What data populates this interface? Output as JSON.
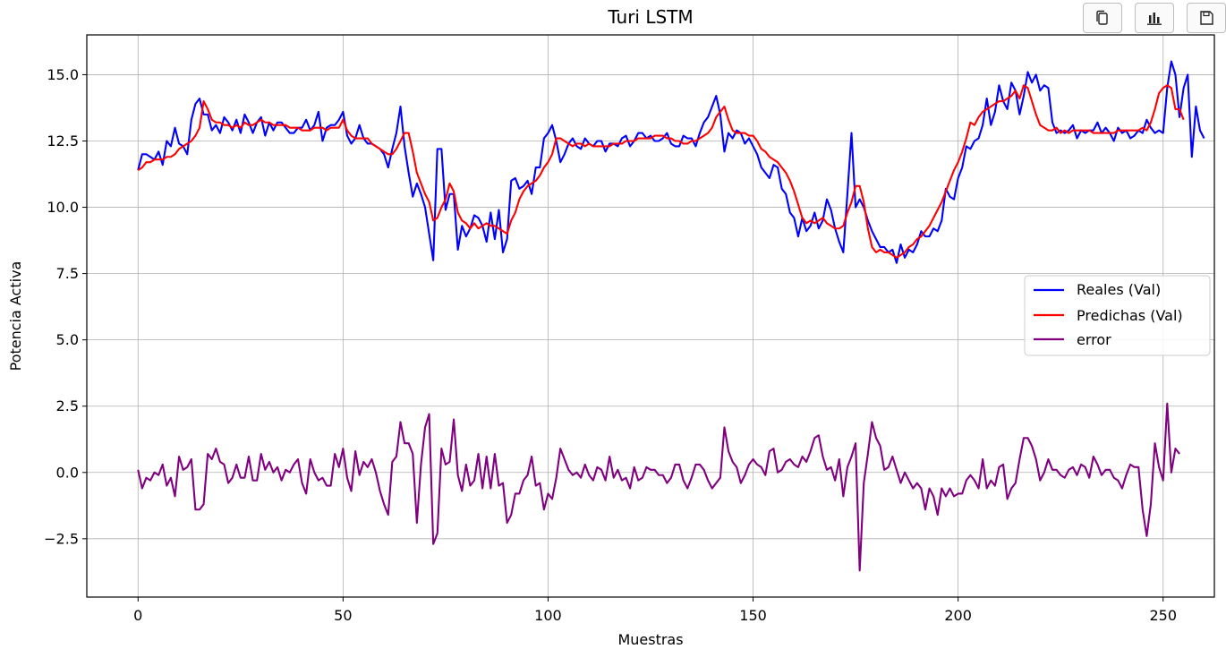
{
  "toolbar": {
    "icons": [
      "copy-icon",
      "bar-chart-icon",
      "save-icon"
    ]
  },
  "chart_data": {
    "type": "line",
    "title": "Turi LSTM",
    "xlabel": "Muestras",
    "ylabel": "Potencia Activa",
    "xlim": [
      -12.5,
      262.5
    ],
    "ylim": [
      -4.7,
      16.5
    ],
    "xticks": [
      0,
      50,
      100,
      150,
      200,
      250
    ],
    "xtick_labels": [
      "0",
      "50",
      "100",
      "150",
      "200",
      "250"
    ],
    "yticks": [
      -2.5,
      0.0,
      2.5,
      5.0,
      7.5,
      10.0,
      12.5,
      15.0
    ],
    "ytick_labels": [
      "−2.5",
      "0.0",
      "2.5",
      "5.0",
      "7.5",
      "10.0",
      "12.5",
      "15.0"
    ],
    "grid": true,
    "legend_position": "center-right",
    "series": [
      {
        "name": "Reales (Val)",
        "color": "#0000ff",
        "x_start": 0,
        "values": [
          11.4,
          12,
          12,
          11.9,
          11.8,
          12.1,
          11.6,
          12.5,
          12.3,
          13,
          12.4,
          12.3,
          12,
          13.3,
          13.9,
          14.1,
          13.5,
          13.5,
          12.9,
          13.1,
          12.8,
          13.4,
          13.2,
          12.9,
          13.3,
          12.8,
          13.5,
          13.2,
          12.8,
          13.2,
          13.4,
          12.7,
          13.2,
          12.9,
          13.2,
          13.2,
          13,
          12.8,
          12.8,
          13,
          13,
          13.3,
          12.9,
          13.1,
          13.6,
          12.5,
          13,
          13.1,
          13.1,
          13.3,
          13.6,
          12.7,
          12.4,
          12.6,
          13.1,
          12.6,
          12.4,
          12.4,
          12.3,
          12.2,
          12,
          11.5,
          12.2,
          12.8,
          13.8,
          12.3,
          11.3,
          10.4,
          10.9,
          10.5,
          10,
          9,
          8,
          12.2,
          12.2,
          9.9,
          10.5,
          10.5,
          8.4,
          9.3,
          8.9,
          9.2,
          9.7,
          9.6,
          9.3,
          8.7,
          9.8,
          8.8,
          9.9,
          8.3,
          8.8,
          11,
          11.1,
          10.7,
          10.8,
          11,
          10.5,
          11.5,
          11.5,
          12.6,
          12.8,
          13.1,
          12.5,
          11.7,
          12,
          12.4,
          12.6,
          12.3,
          12.2,
          12.6,
          12.4,
          12.3,
          12.5,
          12.5,
          12.1,
          12.4,
          12.4,
          12.3,
          12.6,
          12.7,
          12.3,
          12.5,
          12.8,
          12.8,
          12.6,
          12.7,
          12.5,
          12.5,
          12.6,
          12.8,
          12.4,
          12.3,
          12.3,
          12.7,
          12.6,
          12.6,
          12.3,
          12.8,
          13.2,
          13.4,
          13.8,
          14.2,
          13.5,
          12.1,
          12.8,
          12.6,
          12.9,
          12.8,
          12.4,
          12.6,
          12.3,
          12,
          11.5,
          11.3,
          11.1,
          11.6,
          11.5,
          10.7,
          10.5,
          9.8,
          9.6,
          8.9,
          9.6,
          9.1,
          9.3,
          9.8,
          9.2,
          9.5,
          10.3,
          9.9,
          9.2,
          8.7,
          8.3,
          10.5,
          12.8,
          10,
          10.3,
          10,
          9.5,
          9.1,
          8.8,
          8.5,
          8.5,
          8.3,
          8.4,
          7.9,
          8.6,
          8.1,
          8.4,
          8.3,
          8.6,
          9.1,
          8.9,
          8.9,
          9.2,
          9.1,
          9.5,
          10.7,
          10.4,
          10.3,
          11.1,
          11.5,
          12.3,
          12.2,
          12.5,
          12.6,
          13.1,
          14.1,
          13.1,
          13.6,
          14.6,
          14,
          13.7,
          14.7,
          14.4,
          13.5,
          14.2,
          15.1,
          14.7,
          15,
          14.4,
          14.6,
          14.5,
          13.2,
          12.8,
          12.9,
          12.8,
          12.9,
          13.1,
          12.6,
          12.9,
          12.8,
          12.9,
          12.9,
          13.2,
          12.8,
          13,
          12.8,
          12.5,
          13,
          12.8,
          12.9,
          12.6,
          12.7,
          12.9,
          12.8,
          13.3,
          13,
          12.8,
          12.9,
          12.8,
          14.5,
          15.5,
          15,
          13.4,
          14.5,
          15,
          11.9,
          13.8,
          12.9,
          12.6
        ]
      },
      {
        "name": "Predichas (Val)",
        "color": "#ff0000",
        "x_start": 0,
        "values": [
          11.4,
          11.5,
          11.7,
          11.7,
          11.8,
          11.8,
          11.8,
          11.9,
          11.9,
          12,
          12.2,
          12.3,
          12.4,
          12.5,
          12.7,
          13,
          14,
          13.7,
          13.3,
          13.2,
          13.2,
          13.1,
          13.1,
          13,
          13.1,
          13,
          13.2,
          13.1,
          13.1,
          13.2,
          13.3,
          13.2,
          13.2,
          13.1,
          13.1,
          13.1,
          13.1,
          13,
          13,
          13,
          12.9,
          12.9,
          12.9,
          13,
          13,
          13,
          12.9,
          13,
          13,
          13,
          13.3,
          12.9,
          12.7,
          12.6,
          12.6,
          12.6,
          12.6,
          12.4,
          12.3,
          12.2,
          12.1,
          12,
          12,
          12.2,
          12.5,
          12.8,
          12.8,
          12.1,
          11.3,
          10.9,
          10.5,
          10.2,
          9.5,
          9.6,
          10,
          10.3,
          10.9,
          10.6,
          9.8,
          9.5,
          9.4,
          9.2,
          9.4,
          9.2,
          9.3,
          9.4,
          9.3,
          9.3,
          9.2,
          9.1,
          9,
          9.5,
          9.8,
          10.3,
          10.6,
          10.8,
          10.9,
          11,
          11.2,
          11.5,
          11.7,
          12,
          12.6,
          12.6,
          12.5,
          12.4,
          12.3,
          12.4,
          12.4,
          12.3,
          12.4,
          12.3,
          12.3,
          12.3,
          12.3,
          12.3,
          12.4,
          12.4,
          12.4,
          12.5,
          12.5,
          12.5,
          12.6,
          12.6,
          12.6,
          12.6,
          12.7,
          12.7,
          12.7,
          12.6,
          12.6,
          12.5,
          12.5,
          12.4,
          12.4,
          12.5,
          12.5,
          12.6,
          12.7,
          12.8,
          13,
          13.4,
          13.6,
          13.8,
          13.3,
          12.9,
          12.8,
          12.8,
          12.8,
          12.7,
          12.7,
          12.5,
          12.2,
          12.1,
          11.9,
          11.8,
          11.7,
          11.5,
          11.3,
          11,
          10.6,
          10.1,
          9.6,
          9.4,
          9.5,
          9.4,
          9.5,
          9.6,
          9.4,
          9.3,
          9.2,
          9.2,
          9.3,
          9.8,
          10.2,
          10.8,
          10.8,
          10.2,
          9.2,
          8.5,
          8.3,
          8.4,
          8.3,
          8.3,
          8.2,
          8.1,
          8.2,
          8.3,
          8.5,
          8.6,
          8.8,
          8.9,
          9.1,
          9.3,
          9.6,
          9.9,
          10.2,
          10.6,
          11,
          11.4,
          11.7,
          12.1,
          12.6,
          13.2,
          13.1,
          13.4,
          13.6,
          13.7,
          13.8,
          13.9,
          14,
          14,
          14.1,
          14.2,
          14.4,
          14.1,
          14.6,
          14.5,
          14,
          13.5,
          13.1,
          13,
          12.9,
          12.9,
          13,
          12.8,
          12.9,
          12.8,
          12.9,
          12.9,
          12.9,
          12.9,
          12.9,
          12.8,
          12.8,
          12.8,
          12.8,
          12.8,
          12.8,
          12.9,
          12.9,
          12.9,
          12.9,
          12.9,
          12.9,
          13,
          12.9,
          13.2,
          13.7,
          14.3,
          14.5,
          14.6,
          14.5,
          13.7,
          13.7,
          13.3
        ]
      },
      {
        "name": "error",
        "color": "#800080",
        "x_start": 0,
        "values": [
          0.1,
          -0.6,
          -0.2,
          -0.3,
          0,
          -0.1,
          0.3,
          -0.5,
          -0.2,
          -0.9,
          0.6,
          0.1,
          0.2,
          0.5,
          -1.4,
          -1.4,
          -1.2,
          0.7,
          0.5,
          0.9,
          0.4,
          0.3,
          -0.4,
          -0.2,
          0.3,
          -0.2,
          -0.2,
          0.6,
          -0.3,
          -0.3,
          0.7,
          0.1,
          0.4,
          0,
          0.2,
          -0.3,
          0.1,
          0,
          0.3,
          0.5,
          -0.4,
          -0.8,
          0.5,
          0,
          -0.3,
          -0.2,
          -0.5,
          -0.5,
          0.7,
          0.2,
          0.9,
          -0.2,
          -0.7,
          0.8,
          -0.1,
          0.4,
          0.2,
          0.5,
          0,
          -0.7,
          -1.2,
          -1.6,
          0.4,
          0.6,
          1.9,
          1.1,
          1.1,
          0.7,
          -1.9,
          0.3,
          1.7,
          2.2,
          -2.7,
          -2.3,
          0.9,
          0.3,
          0.4,
          2,
          -0.1,
          -0.7,
          0.3,
          -0.5,
          -0.3,
          0.7,
          -0.6,
          0.6,
          -0.6,
          0.7,
          -0.5,
          -0.4,
          -1.9,
          -1.6,
          -0.8,
          -0.8,
          -0.3,
          -0.1,
          0.6,
          -0.5,
          -0.4,
          -1.4,
          -0.8,
          -1,
          -0.2,
          0.9,
          0.5,
          0.1,
          -0.1,
          0,
          -0.2,
          0.3,
          -0.1,
          -0.3,
          0.2,
          0.1,
          -0.3,
          0.6,
          -0.2,
          0.1,
          -0.3,
          -0.2,
          -0.6,
          0.2,
          -0.3,
          -0.2,
          0.2,
          0.1,
          0.1,
          -0.1,
          -0.1,
          -0.4,
          -0.2,
          0.3,
          0.3,
          -0.3,
          -0.6,
          -0.2,
          0.3,
          0.3,
          0.1,
          -0.3,
          -0.6,
          -0.4,
          -0.2,
          1.7,
          0.8,
          0.4,
          0.2,
          -0.4,
          -0.1,
          0.3,
          0.5,
          0.3,
          0.2,
          -0.1,
          0.8,
          0.9,
          0,
          0.1,
          0.4,
          0.5,
          0.3,
          0.2,
          0.6,
          0.4,
          0.8,
          1.3,
          1.4,
          0.6,
          0.1,
          0.2,
          -0.3,
          0.5,
          -0.9,
          0.2,
          0.6,
          1.1,
          -3.7,
          -0.4,
          0.7,
          1.9,
          1.3,
          1,
          0.1,
          0.2,
          0.6,
          0.1,
          -0.4,
          0,
          -0.3,
          -0.6,
          -0.4,
          -0.6,
          -1.4,
          -0.6,
          -0.9,
          -1.6,
          -0.6,
          -0.9,
          -0.6,
          -0.9,
          -0.8,
          -0.8,
          -0.3,
          -0.1,
          -0.3,
          -0.6,
          0.5,
          -0.6,
          -0.3,
          -0.5,
          0.2,
          0.3,
          -1,
          -0.6,
          -0.4,
          0.5,
          1.3,
          1.3,
          1,
          0.5,
          -0.3,
          0,
          0.5,
          0.1,
          0.1,
          -0.1,
          -0.2,
          0.1,
          0.2,
          -0.1,
          0.3,
          0.2,
          -0.2,
          0.6,
          0.3,
          -0.1,
          0.1,
          0.1,
          -0.2,
          -0.3,
          -0.6,
          -0.1,
          0.3,
          0.2,
          0.2,
          -1.4,
          -2.4,
          -1.2,
          1.1,
          0.2,
          -0.3,
          2.6,
          0,
          0.9,
          0.7
        ]
      }
    ]
  }
}
